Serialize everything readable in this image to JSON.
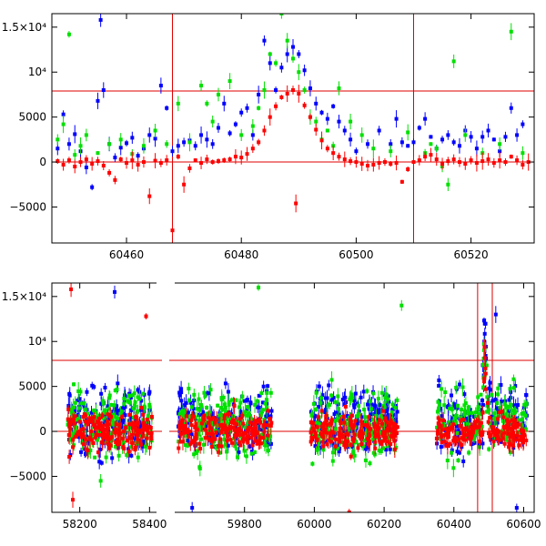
{
  "chart_data": [
    {
      "type": "scatter",
      "panel": "top",
      "title": "",
      "xlabel": "",
      "ylabel": "",
      "xlim": [
        60447,
        60531
      ],
      "ylim": [
        -9000,
        16500
      ],
      "x_ticks": [
        60460,
        60480,
        60500,
        60520
      ],
      "x_tick_labels": [
        "60460",
        "60480",
        "60500",
        "60520"
      ],
      "y_ticks": [
        -5000,
        0,
        5000,
        10000,
        15000
      ],
      "y_tick_labels": [
        "−5000",
        "0",
        "5000",
        "10⁴",
        "1.5×10⁴"
      ],
      "grid": false,
      "legend": "none",
      "hlines": [
        0,
        7900
      ],
      "vlines": [
        60468,
        60510
      ],
      "series": [
        {
          "color": "#ff0000",
          "points": [
            [
              60448,
              100
            ],
            [
              60449,
              -300
            ],
            [
              60450,
              200
            ],
            [
              60451,
              -500
            ],
            [
              60452,
              0
            ],
            [
              60453,
              300
            ],
            [
              60454,
              -200
            ],
            [
              60455,
              100
            ],
            [
              60456,
              -400
            ],
            [
              60457,
              -1200
            ],
            [
              60458,
              -2000
            ],
            [
              60459,
              300
            ],
            [
              60460,
              -100
            ],
            [
              60461,
              200
            ],
            [
              60462,
              -300
            ],
            [
              60463,
              0
            ],
            [
              60464,
              -3800
            ],
            [
              60465,
              150
            ],
            [
              60466,
              -100
            ],
            [
              60467,
              200
            ],
            [
              60468,
              -7600
            ],
            [
              60469,
              600
            ],
            [
              60470,
              -2500
            ],
            [
              60471,
              -700
            ],
            [
              60472,
              200
            ],
            [
              60473,
              -100
            ],
            [
              60474,
              300
            ],
            [
              60475,
              0
            ],
            [
              60476,
              100
            ],
            [
              60477,
              200
            ],
            [
              60478,
              300
            ],
            [
              60479,
              600
            ],
            [
              60480,
              500
            ],
            [
              60481,
              900
            ],
            [
              60482,
              1500
            ],
            [
              60483,
              2200
            ],
            [
              60484,
              3500
            ],
            [
              60485,
              5000
            ],
            [
              60486,
              6200
            ],
            [
              60487,
              7200
            ],
            [
              60488,
              7600
            ],
            [
              60489,
              8000
            ],
            [
              60490,
              7600
            ],
            [
              60491,
              6300
            ],
            [
              60492,
              5000
            ],
            [
              60493,
              3600
            ],
            [
              60494,
              2400
            ],
            [
              60495,
              1500
            ],
            [
              60496,
              1000
            ],
            [
              60497,
              600
            ],
            [
              60498,
              300
            ],
            [
              60499,
              100
            ],
            [
              60500,
              0
            ],
            [
              60501,
              -200
            ],
            [
              60502,
              -400
            ],
            [
              60503,
              -300
            ],
            [
              60504,
              -100
            ],
            [
              60505,
              0
            ],
            [
              60506,
              -200
            ],
            [
              60507,
              -100
            ],
            [
              60508,
              -2200
            ],
            [
              60509,
              -800
            ],
            [
              60510,
              0
            ],
            [
              60511,
              200
            ],
            [
              60512,
              600
            ],
            [
              60513,
              800
            ],
            [
              60514,
              300
            ],
            [
              60515,
              -200
            ],
            [
              60516,
              100
            ],
            [
              60517,
              300
            ],
            [
              60518,
              0
            ],
            [
              60519,
              -200
            ],
            [
              60520,
              200
            ],
            [
              60521,
              -100
            ],
            [
              60522,
              100
            ],
            [
              60523,
              300
            ],
            [
              60524,
              -100
            ],
            [
              60525,
              200
            ],
            [
              60526,
              0
            ],
            [
              60527,
              600
            ],
            [
              60528,
              200
            ],
            [
              60529,
              -300
            ],
            [
              60530,
              0
            ],
            [
              60489.5,
              -4600
            ]
          ]
        },
        {
          "color": "#00e000",
          "points": [
            [
              60448,
              2500
            ],
            [
              60449,
              4200
            ],
            [
              60450,
              14200
            ],
            [
              60451,
              800
            ],
            [
              60452,
              1800
            ],
            [
              60453,
              3000
            ],
            [
              60455,
              1000
            ],
            [
              60457,
              2000
            ],
            [
              60459,
              2500
            ],
            [
              60461,
              900
            ],
            [
              60463,
              1800
            ],
            [
              60465,
              3500
            ],
            [
              60467,
              2000
            ],
            [
              60469,
              6500
            ],
            [
              60471,
              2200
            ],
            [
              60473,
              8500
            ],
            [
              60474,
              6500
            ],
            [
              60475,
              4500
            ],
            [
              60476,
              7500
            ],
            [
              60478,
              9000
            ],
            [
              60480,
              3000
            ],
            [
              60482,
              4000
            ],
            [
              60483,
              6000
            ],
            [
              60484,
              8000
            ],
            [
              60485,
              12000
            ],
            [
              60486,
              11000
            ],
            [
              60487,
              16500
            ],
            [
              60488,
              13500
            ],
            [
              60489,
              11500
            ],
            [
              60490,
              10000
            ],
            [
              60491,
              8000
            ],
            [
              60492,
              5000
            ],
            [
              60493,
              4500
            ],
            [
              60494,
              2500
            ],
            [
              60495,
              3500
            ],
            [
              60496,
              1800
            ],
            [
              60497,
              8200
            ],
            [
              60499,
              4500
            ],
            [
              60501,
              3000
            ],
            [
              60503,
              1500
            ],
            [
              60506,
              1200
            ],
            [
              60509,
              3300
            ],
            [
              60512,
              1000
            ],
            [
              60513,
              2000
            ],
            [
              60514,
              1500
            ],
            [
              60515,
              -500
            ],
            [
              60516,
              -2500
            ],
            [
              60517,
              11200
            ],
            [
              60519,
              3000
            ],
            [
              60522,
              1000
            ],
            [
              60525,
              2000
            ],
            [
              60527,
              14500
            ],
            [
              60529,
              1000
            ]
          ]
        },
        {
          "color": "#0000ff",
          "points": [
            [
              60448,
              1500
            ],
            [
              60449,
              5300
            ],
            [
              60450,
              2000
            ],
            [
              60451,
              3100
            ],
            [
              60452,
              1200
            ],
            [
              60453,
              -600
            ],
            [
              60454,
              -2800
            ],
            [
              60455,
              6800
            ],
            [
              60455.5,
              15800
            ],
            [
              60456,
              8000
            ],
            [
              60457,
              2000
            ],
            [
              60458,
              500
            ],
            [
              60459,
              1600
            ],
            [
              60460,
              2100
            ],
            [
              60461,
              2700
            ],
            [
              60462,
              700
            ],
            [
              60463,
              1500
            ],
            [
              60464,
              3000
            ],
            [
              60465,
              2600
            ],
            [
              60466,
              8500
            ],
            [
              60467,
              6000
            ],
            [
              60468,
              1200
            ],
            [
              60469,
              1800
            ],
            [
              60470,
              2200
            ],
            [
              60471,
              2400
            ],
            [
              60472,
              1800
            ],
            [
              60473,
              3000
            ],
            [
              60474,
              2500
            ],
            [
              60475,
              2000
            ],
            [
              60476,
              3800
            ],
            [
              60477,
              6500
            ],
            [
              60478,
              3200
            ],
            [
              60479,
              4200
            ],
            [
              60480,
              5500
            ],
            [
              60481,
              6000
            ],
            [
              60482,
              3000
            ],
            [
              60483,
              7500
            ],
            [
              60484,
              13500
            ],
            [
              60485,
              11000
            ],
            [
              60486,
              8000
            ],
            [
              60487,
              10500
            ],
            [
              60488,
              12000
            ],
            [
              60489,
              12800
            ],
            [
              60490,
              12000
            ],
            [
              60491,
              10200
            ],
            [
              60492,
              8200
            ],
            [
              60493,
              6500
            ],
            [
              60494,
              5500
            ],
            [
              60495,
              4800
            ],
            [
              60496,
              6200
            ],
            [
              60497,
              4500
            ],
            [
              60498,
              3500
            ],
            [
              60499,
              2500
            ],
            [
              60500,
              1200
            ],
            [
              60502,
              2000
            ],
            [
              60504,
              3500
            ],
            [
              60506,
              2000
            ],
            [
              60507,
              4800
            ],
            [
              60508,
              2200
            ],
            [
              60509,
              1800
            ],
            [
              60510,
              2200
            ],
            [
              60511,
              3800
            ],
            [
              60512,
              4800
            ],
            [
              60513,
              2800
            ],
            [
              60514,
              1500
            ],
            [
              60515,
              2500
            ],
            [
              60516,
              3000
            ],
            [
              60517,
              2200
            ],
            [
              60518,
              1800
            ],
            [
              60519,
              3500
            ],
            [
              60520,
              2800
            ],
            [
              60521,
              1500
            ],
            [
              60522,
              2800
            ],
            [
              60523,
              3500
            ],
            [
              60524,
              2500
            ],
            [
              60525,
              1200
            ],
            [
              60526,
              2800
            ],
            [
              60527,
              6000
            ],
            [
              60528,
              3000
            ],
            [
              60529,
              4200
            ]
          ]
        }
      ]
    },
    {
      "type": "scatter",
      "panel": "bottom",
      "title": "",
      "xlabel": "",
      "ylabel": "",
      "xlim": [
        58120,
        60630
      ],
      "ylim": [
        -9000,
        16500
      ],
      "x_ticks": [
        58200,
        58400,
        59800,
        60000,
        60200,
        60400,
        60600
      ],
      "x_tick_labels": [
        "58200",
        "58400",
        "59800",
        "60000",
        "60200",
        "60400",
        "60600"
      ],
      "y_ticks": [
        -5000,
        0,
        5000,
        10000,
        15000
      ],
      "y_tick_labels": [
        "−5000",
        "0",
        "5000",
        "10⁴",
        "1.5×10⁴"
      ],
      "grid": false,
      "legend": "none",
      "hlines": [
        0,
        7900
      ],
      "vlines": [
        60468,
        60510
      ],
      "x_axis_break": [
        58420,
        59600
      ],
      "seasons": [
        [
          58165,
          58410
        ],
        [
          59610,
          59880
        ],
        [
          59990,
          60240
        ],
        [
          60350,
          60610
        ]
      ],
      "outliers": [
        {
          "color": "#ff0000",
          "x": 58175,
          "y": 15800
        },
        {
          "color": "#0000ff",
          "x": 58300,
          "y": 15500
        },
        {
          "color": "#ff0000",
          "x": 58390,
          "y": 12800
        },
        {
          "color": "#00e000",
          "x": 58260,
          "y": -5500
        },
        {
          "color": "#ff0000",
          "x": 58180,
          "y": -7600
        },
        {
          "color": "#0000ff",
          "x": 59650,
          "y": -8500
        },
        {
          "color": "#00e000",
          "x": 59840,
          "y": 16000
        },
        {
          "color": "#ff0000",
          "x": 60100,
          "y": -9000
        },
        {
          "color": "#00e000",
          "x": 60250,
          "y": 14000
        },
        {
          "color": "#0000ff",
          "x": 60580,
          "y": -8500
        },
        {
          "color": "#0000ff",
          "x": 60520,
          "y": 13000
        }
      ]
    }
  ]
}
